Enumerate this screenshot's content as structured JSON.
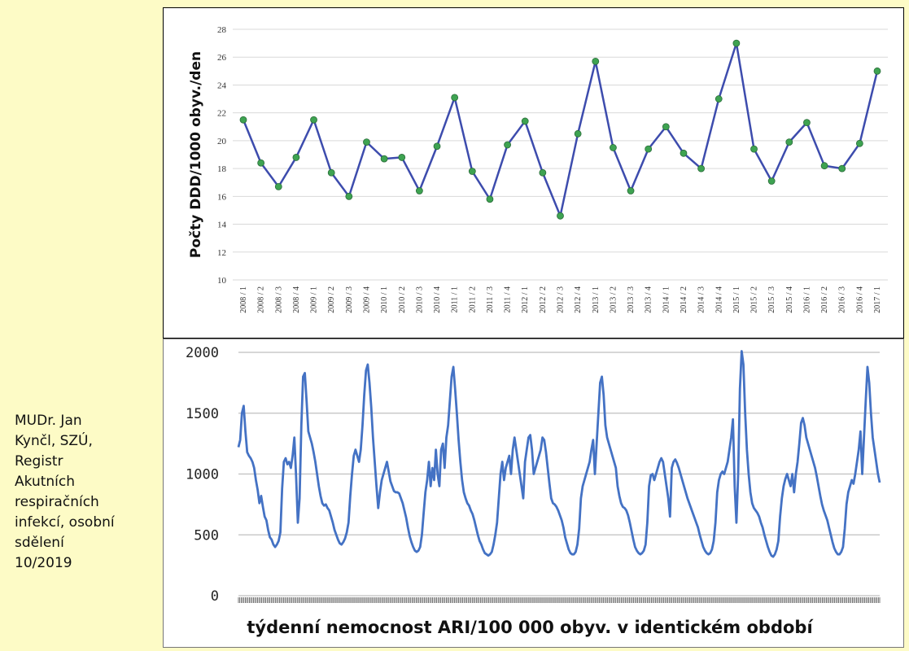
{
  "source_note": {
    "lines": [
      "MUDr. Jan",
      "Kynčl, SZÚ,",
      "Registr",
      "Akutních",
      "respiračních",
      "infekcí, osobní",
      "sdělení",
      "10/2019"
    ]
  },
  "colors": {
    "background": "#fdfbc6",
    "line": "#3d4cad",
    "marker": "#3ea351",
    "series2": "#4472c4",
    "grid": "#d9d9d9"
  },
  "chart_data": [
    {
      "type": "line",
      "ylabel": "Počty DDD/1000 obyv./den",
      "ylim": [
        10,
        28
      ],
      "yticks": [
        10,
        12,
        14,
        16,
        18,
        20,
        22,
        24,
        26,
        28
      ],
      "grid": true,
      "categories": [
        "2008 / 1",
        "2008 / 2",
        "2008 / 3",
        "2008 / 4",
        "2009 / 1",
        "2009 / 2",
        "2009 / 3",
        "2009 / 4",
        "2010 / 1",
        "2010 / 2",
        "2010 / 3",
        "2010 / 4",
        "2011 / 1",
        "2011 / 2",
        "2011 / 3",
        "2011 / 4",
        "2012 / 1",
        "2012 / 2",
        "2012 / 3",
        "2012 / 4",
        "2013 / 1",
        "2013 / 2",
        "2013 / 3",
        "2013 / 4",
        "2014 / 1",
        "2014 / 2",
        "2014 / 3",
        "2014 / 4",
        "2015 / 1",
        "2015 / 2",
        "2015 / 3",
        "2015 / 4",
        "2016 / 1",
        "2016 / 2",
        "2016 / 3",
        "2016 / 4",
        "2017 / 1"
      ],
      "values": [
        21.5,
        18.4,
        16.7,
        18.8,
        21.5,
        17.7,
        16.0,
        19.9,
        18.7,
        18.8,
        16.4,
        19.6,
        23.1,
        17.8,
        15.8,
        19.7,
        21.4,
        17.7,
        14.6,
        20.5,
        25.7,
        19.5,
        16.4,
        19.4,
        21.0,
        19.1,
        18.0,
        23.0,
        27.0,
        19.4,
        17.1,
        19.9,
        21.3,
        18.2,
        18.0,
        19.8,
        25.0
      ]
    },
    {
      "type": "line",
      "xlabel": "týdenní nemocnost ARI/100 000 obyv. v identickém období",
      "ylim": [
        0,
        2000
      ],
      "yticks": [
        0,
        500,
        1000,
        1500,
        2000
      ],
      "grid": true,
      "n_weeks": 470,
      "values": [
        1220,
        1280,
        1500,
        1560,
        1350,
        1180,
        1150,
        1130,
        1100,
        1050,
        950,
        870,
        760,
        820,
        730,
        650,
        620,
        540,
        480,
        460,
        420,
        400,
        420,
        450,
        520,
        880,
        1100,
        1130,
        1080,
        1100,
        1050,
        1150,
        1300,
        980,
        600,
        800,
        1400,
        1800,
        1830,
        1600,
        1350,
        1300,
        1250,
        1180,
        1100,
        1000,
        900,
        820,
        760,
        740,
        750,
        720,
        700,
        650,
        600,
        540,
        500,
        460,
        430,
        420,
        440,
        470,
        520,
        600,
        820,
        1000,
        1150,
        1200,
        1150,
        1100,
        1200,
        1400,
        1650,
        1850,
        1900,
        1750,
        1550,
        1300,
        1100,
        900,
        720,
        850,
        950,
        1000,
        1050,
        1100,
        1020,
        940,
        900,
        860,
        850,
        850,
        840,
        800,
        760,
        700,
        640,
        560,
        490,
        440,
        400,
        370,
        360,
        370,
        400,
        500,
        680,
        850,
        950,
        1100,
        900,
        1050,
        950,
        1200,
        1000,
        900,
        1200,
        1250,
        1050,
        1300,
        1400,
        1600,
        1800,
        1880,
        1700,
        1500,
        1280,
        1100,
        950,
        850,
        800,
        760,
        740,
        700,
        670,
        620,
        560,
        500,
        450,
        420,
        380,
        350,
        340,
        330,
        340,
        360,
        420,
        500,
        600,
        800,
        1000,
        1100,
        950,
        1050,
        1100,
        1150,
        1000,
        1200,
        1300,
        1200,
        1100,
        1000,
        900,
        800,
        1100,
        1200,
        1300,
        1320,
        1200,
        1000,
        1050,
        1100,
        1150,
        1200,
        1300,
        1280,
        1180,
        1050,
        920,
        800,
        760,
        750,
        730,
        700,
        660,
        620,
        560,
        480,
        430,
        380,
        350,
        340,
        340,
        360,
        420,
        550,
        800,
        900,
        950,
        1000,
        1050,
        1100,
        1200,
        1280,
        1000,
        1250,
        1500,
        1750,
        1800,
        1650,
        1400,
        1300,
        1250,
        1200,
        1150,
        1100,
        1050,
        900,
        820,
        760,
        730,
        720,
        700,
        660,
        600,
        530,
        460,
        400,
        370,
        350,
        340,
        350,
        370,
        420,
        600,
        900,
        990,
        1000,
        950,
        1000,
        1050,
        1100,
        1130,
        1100,
        1000,
        900,
        800,
        650,
        1050,
        1100,
        1120,
        1090,
        1050,
        1000,
        950,
        900,
        850,
        800,
        760,
        720,
        680,
        640,
        600,
        560,
        500,
        450,
        400,
        370,
        350,
        340,
        350,
        380,
        450,
        600,
        850,
        950,
        1000,
        1020,
        1000,
        1050,
        1100,
        1200,
        1300,
        1450,
        900,
        600,
        1000,
        1700,
        2010,
        1900,
        1500,
        1200,
        1000,
        850,
        760,
        720,
        700,
        680,
        650,
        600,
        560,
        500,
        450,
        400,
        360,
        330,
        320,
        340,
        380,
        450,
        650,
        800,
        900,
        960,
        1000,
        950,
        900,
        1000,
        850,
        1000,
        1100,
        1250,
        1420,
        1460,
        1400,
        1300,
        1250,
        1200,
        1150,
        1100,
        1050,
        980,
        900,
        820,
        750,
        700,
        660,
        620,
        560,
        500,
        440,
        390,
        360,
        340,
        340,
        360,
        400,
        550,
        750,
        850,
        900,
        950,
        920,
        1000,
        1100,
        1200,
        1350,
        1000,
        1300,
        1600,
        1880,
        1750,
        1500,
        1300,
        1200,
        1100,
        1000,
        930
      ]
    }
  ]
}
